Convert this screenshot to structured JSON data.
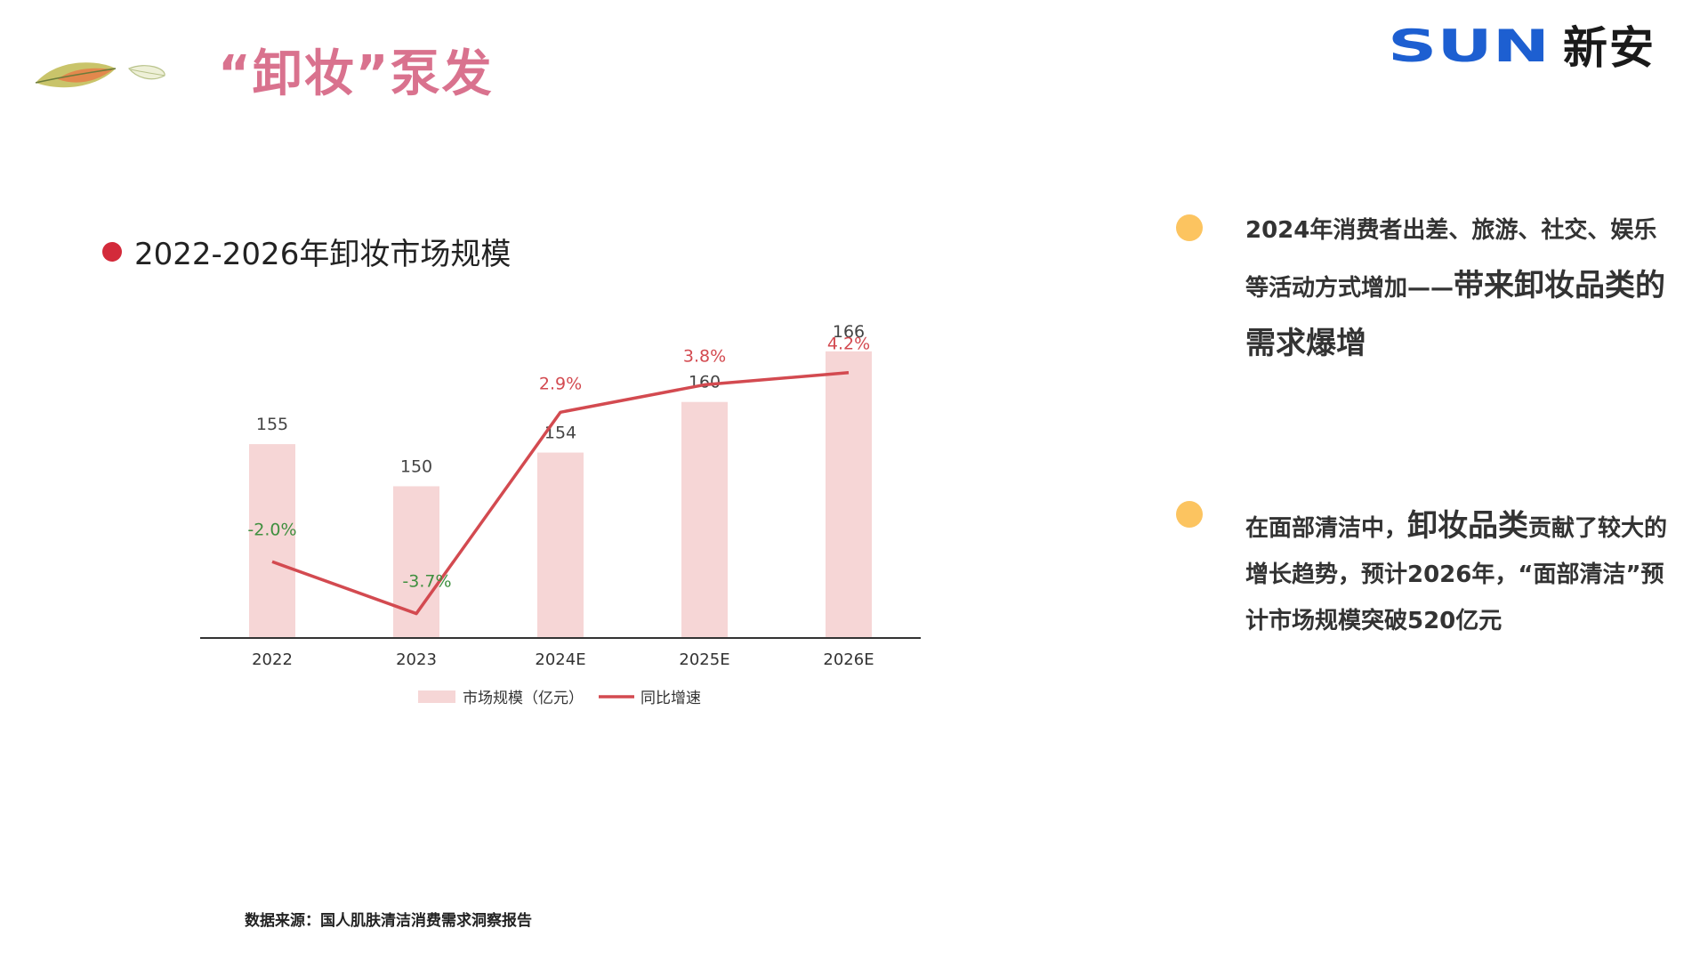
{
  "header": {
    "title": "“卸妆”泵发",
    "logo_en": "SUN",
    "logo_cn": "新安"
  },
  "colors": {
    "title_pink": "#d9728e",
    "bar_fill": "#f6d6d6",
    "line_red": "#d34a50",
    "negative_green": "#3f8f3f",
    "bullet_orange": "#fcc460",
    "logo_blue": "#1d5fd1"
  },
  "chart_heading": "2022-2026年卸妆市场规模",
  "chart_data": {
    "type": "bar",
    "categories": [
      "2022",
      "2023",
      "2024E",
      "2025E",
      "2026E"
    ],
    "series": [
      {
        "name": "市场规模（亿元）",
        "type": "bar",
        "values": [
          155,
          150,
          154,
          160,
          166
        ],
        "labels": [
          "155",
          "150",
          "154",
          "160",
          "166"
        ]
      },
      {
        "name": "同比增速",
        "type": "line",
        "values": [
          -2.0,
          -3.7,
          2.9,
          3.8,
          4.2
        ],
        "labels": [
          "-2.0%",
          "-3.7%",
          "2.9%",
          "3.8%",
          "4.2%"
        ]
      }
    ],
    "bar_ylim": [
      132,
      170
    ],
    "line_ylim": [
      -4.5,
      6.0
    ],
    "title": "2022-2026年卸妆市场规模",
    "xlabel": "",
    "ylabel": "",
    "legend": "bottom-center",
    "grid": false
  },
  "points": [
    {
      "normal1": "2024年消费者出差、旅游、社交、娱乐等活动方式增加——",
      "highlight1": "带来卸妆品类的需求爆增"
    },
    {
      "normal1": "在面部清洁中，",
      "highlight1": "卸妆品类",
      "normal2": "贡献了较大的增长趋势，预计2026年，“面部清洁”预计市场规模突破520亿元"
    }
  ],
  "source": "数据来源：国人肌肤清洁消费需求洞察报告"
}
